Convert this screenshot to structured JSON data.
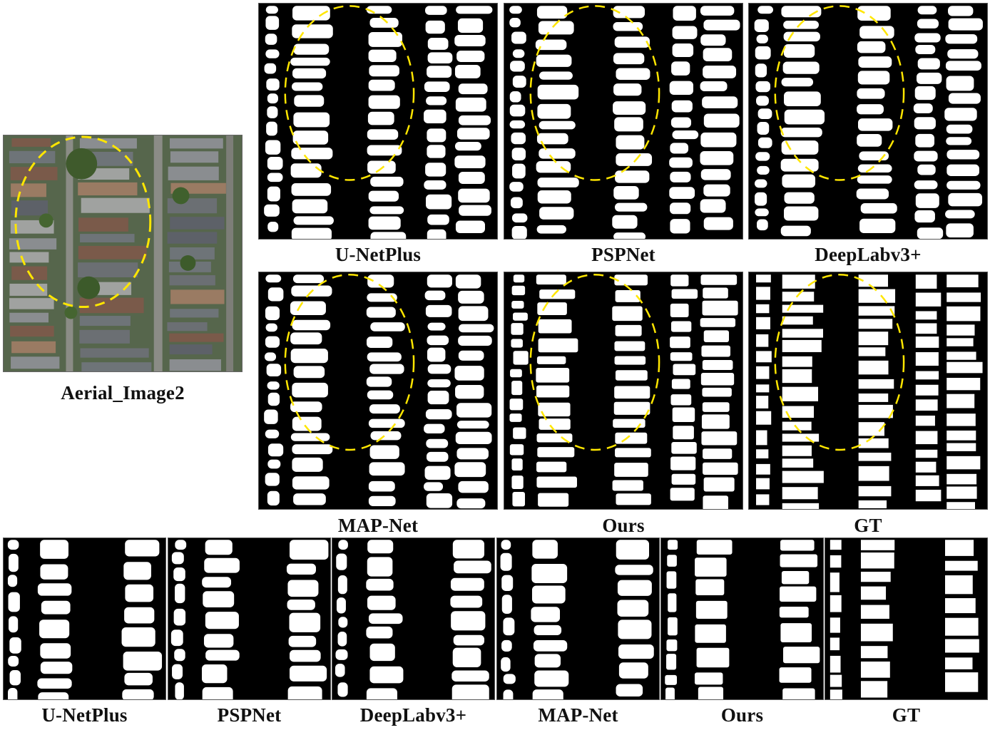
{
  "aerial": {
    "caption": "Aerial_Image2"
  },
  "top_grid": {
    "row1": [
      "U-NetPlus",
      "PSPNet",
      "DeepLabv3+"
    ],
    "row2": [
      "MAP-Net",
      "Ours",
      "GT"
    ]
  },
  "bottom_row": [
    "U-NetPlus",
    "PSPNet",
    "DeepLabv3+",
    "MAP-Net",
    "Ours",
    "GT"
  ],
  "colors": {
    "highlight": "#ffe600",
    "building": "#ffffff",
    "background": "#000000"
  }
}
